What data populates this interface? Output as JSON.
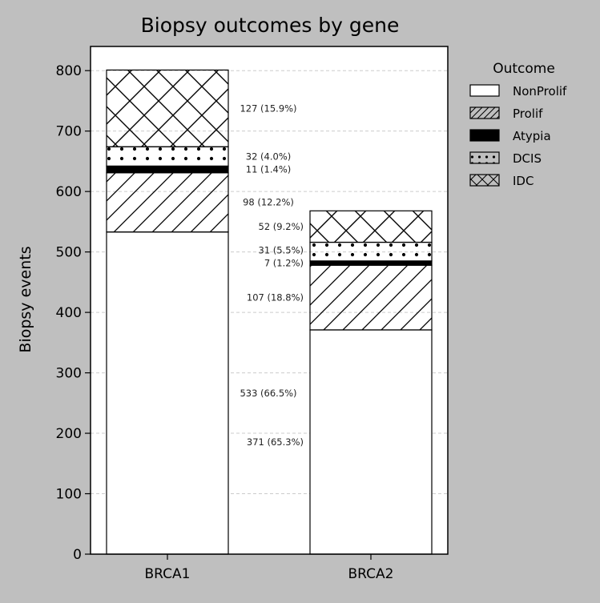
{
  "chart_data": {
    "type": "bar",
    "stacked": true,
    "title": "Biopsy outcomes by gene",
    "xlabel": "",
    "ylabel": "Biopsy events",
    "ylim": [
      0,
      840
    ],
    "yticks": [
      0,
      100,
      200,
      300,
      400,
      500,
      600,
      700,
      800
    ],
    "grid": "y-dashed",
    "categories": [
      "BRCA1",
      "BRCA2"
    ],
    "legend_title": "Outcome",
    "legend_position": "outside-top-right",
    "series": [
      {
        "name": "NonProlif",
        "pattern": "none",
        "values": [
          533,
          371
        ],
        "labels": [
          "533 (66.5%)",
          "371 (65.3%)"
        ]
      },
      {
        "name": "Prolif",
        "pattern": "diagonal",
        "values": [
          98,
          107
        ],
        "labels": [
          "98 (12.2%)",
          "107 (18.8%)"
        ]
      },
      {
        "name": "Atypia",
        "pattern": "solid-black",
        "values": [
          11,
          7
        ],
        "labels": [
          "11 (1.4%)",
          "7 (1.2%)"
        ]
      },
      {
        "name": "DCIS",
        "pattern": "dots",
        "values": [
          32,
          31
        ],
        "labels": [
          "32 (4.0%)",
          "31 (5.5%)"
        ]
      },
      {
        "name": "IDC",
        "pattern": "crosshatch",
        "values": [
          127,
          52
        ],
        "labels": [
          "127 (15.9%)",
          "52 (9.2%)"
        ]
      }
    ],
    "colors": {
      "background": "#bfbfbf",
      "plot_area": "#ffffff",
      "edge": "#000000",
      "grid": "#cccccc"
    }
  }
}
